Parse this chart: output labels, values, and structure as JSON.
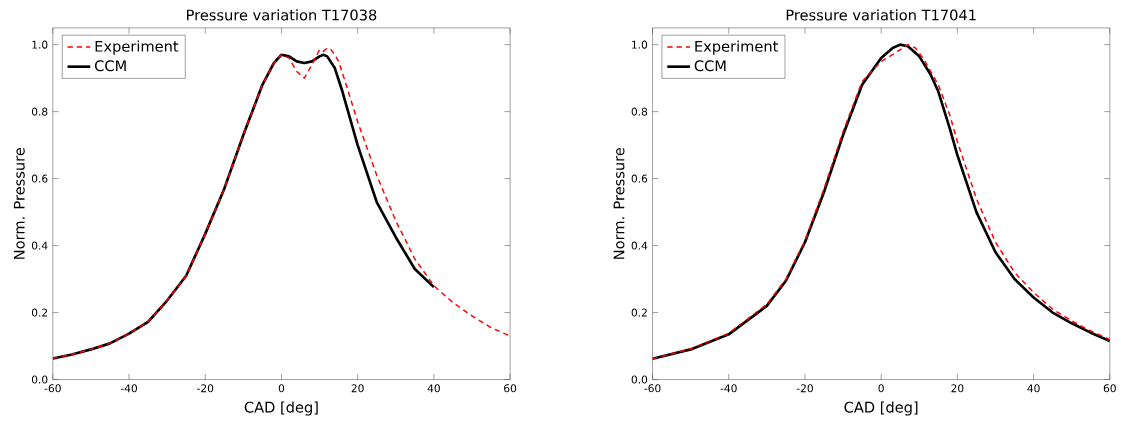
{
  "chart_data": [
    {
      "type": "line",
      "title": "Pressure variation T17038",
      "xlabel": "CAD [deg]",
      "ylabel": "Norm. Pressure",
      "xlim": [
        -60,
        60
      ],
      "ylim": [
        0,
        1.05
      ],
      "xticks": [
        -60,
        -40,
        -20,
        0,
        20,
        40,
        60
      ],
      "yticks": [
        {
          "value": 0,
          "label": "0.0"
        },
        {
          "value": 0.2,
          "label": "0.2"
        },
        {
          "value": 0.4,
          "label": "0.4"
        },
        {
          "value": 0.6,
          "label": "0.6"
        },
        {
          "value": 0.8,
          "label": "0.8"
        },
        {
          "value": 1,
          "label": "1.0"
        }
      ],
      "legend": "top left",
      "grid": false,
      "marker": "none",
      "series": [
        {
          "name": "Experiment",
          "color": "#ff0000",
          "line_style": "dashed",
          "x": [
            -60,
            -55,
            -50,
            -45,
            -40,
            -35,
            -30,
            -25,
            -20,
            -15,
            -10,
            -5,
            -2,
            0,
            2,
            4,
            6,
            8,
            10,
            11,
            12,
            13,
            14,
            15,
            17,
            20,
            25,
            30,
            35,
            40,
            45,
            50,
            55,
            60
          ],
          "values": [
            0.063,
            0.075,
            0.09,
            0.108,
            0.137,
            0.172,
            0.236,
            0.31,
            0.435,
            0.57,
            0.73,
            0.88,
            0.945,
            0.97,
            0.96,
            0.92,
            0.9,
            0.94,
            0.985,
            0.98,
            0.99,
            0.985,
            0.97,
            0.95,
            0.88,
            0.77,
            0.61,
            0.474,
            0.36,
            0.28,
            0.23,
            0.19,
            0.155,
            0.13
          ]
        },
        {
          "name": "CCM",
          "color": "#000000",
          "line_style": "solid",
          "x": [
            -60,
            -55,
            -50,
            -45,
            -40,
            -35,
            -30,
            -25,
            -20,
            -15,
            -10,
            -5,
            -2,
            0,
            2,
            4,
            6,
            8,
            10,
            11,
            12,
            14,
            16,
            18,
            20,
            25,
            30,
            35,
            40
          ],
          "values": [
            0.063,
            0.075,
            0.09,
            0.108,
            0.137,
            0.172,
            0.236,
            0.31,
            0.435,
            0.57,
            0.73,
            0.88,
            0.945,
            0.97,
            0.965,
            0.95,
            0.945,
            0.95,
            0.965,
            0.97,
            0.965,
            0.93,
            0.86,
            0.78,
            0.7,
            0.53,
            0.425,
            0.33,
            0.276
          ]
        }
      ]
    },
    {
      "type": "line",
      "title": "Pressure variation T17041",
      "xlabel": "CAD [deg]",
      "ylabel": "Norm. Pressure",
      "xlim": [
        -60,
        60
      ],
      "ylim": [
        0,
        1.05
      ],
      "xticks": [
        -60,
        -40,
        -20,
        0,
        20,
        40,
        60
      ],
      "yticks": [
        {
          "value": 0,
          "label": "0.0"
        },
        {
          "value": 0.2,
          "label": "0.2"
        },
        {
          "value": 0.4,
          "label": "0.4"
        },
        {
          "value": 0.6,
          "label": "0.6"
        },
        {
          "value": 0.8,
          "label": "0.8"
        },
        {
          "value": 1,
          "label": "1.0"
        }
      ],
      "legend": "top left",
      "grid": false,
      "marker": "none",
      "series": [
        {
          "name": "Experiment",
          "color": "#ff0000",
          "line_style": "dashed",
          "x": [
            -60,
            -50,
            -40,
            -30,
            -25,
            -20,
            -15,
            -10,
            -5,
            0,
            3,
            5,
            7,
            9,
            11,
            13,
            15,
            18,
            20,
            25,
            30,
            35,
            40,
            45,
            50,
            55,
            60
          ],
          "values": [
            0.062,
            0.092,
            0.138,
            0.225,
            0.3,
            0.415,
            0.57,
            0.74,
            0.89,
            0.95,
            0.97,
            0.985,
            1.0,
            0.99,
            0.96,
            0.92,
            0.88,
            0.79,
            0.71,
            0.54,
            0.41,
            0.32,
            0.26,
            0.21,
            0.175,
            0.145,
            0.12
          ]
        },
        {
          "name": "CCM",
          "color": "#000000",
          "line_style": "solid",
          "x": [
            -60,
            -50,
            -40,
            -30,
            -25,
            -20,
            -15,
            -10,
            -5,
            0,
            3,
            5,
            7,
            10,
            13,
            15,
            18,
            20,
            25,
            30,
            35,
            40,
            45,
            50,
            55,
            60
          ],
          "values": [
            0.062,
            0.09,
            0.135,
            0.22,
            0.295,
            0.41,
            0.56,
            0.73,
            0.88,
            0.96,
            0.99,
            1.0,
            0.995,
            0.965,
            0.91,
            0.86,
            0.75,
            0.67,
            0.5,
            0.38,
            0.3,
            0.245,
            0.2,
            0.168,
            0.14,
            0.115
          ]
        }
      ]
    }
  ]
}
